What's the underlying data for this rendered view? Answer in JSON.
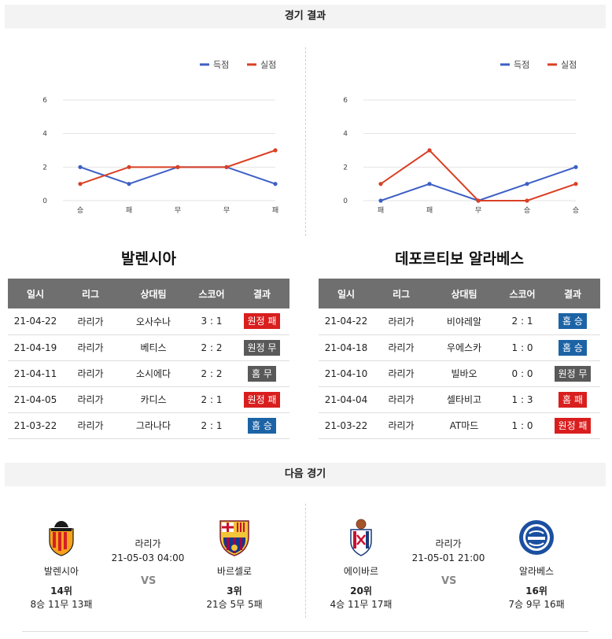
{
  "headers": {
    "results": "경기 결과",
    "next": "다음 경기"
  },
  "legend": {
    "scored": "득점",
    "conceded": "실점"
  },
  "colors": {
    "scored": "#3d5fc4",
    "conceded": "#d94024",
    "grid": "#e3e3e3",
    "red": "#d91e1e",
    "gray": "#595959",
    "blue": "#1c63a6"
  },
  "chart_data": [
    {
      "type": "line",
      "categories": [
        "승",
        "패",
        "무",
        "무",
        "패"
      ],
      "yticks": [
        0,
        2,
        4,
        6
      ],
      "ylim": [
        0,
        6
      ],
      "grid": true,
      "legend_position": "top-right",
      "series": [
        {
          "name": "득점",
          "values": [
            2,
            1,
            2,
            2,
            1
          ]
        },
        {
          "name": "실점",
          "values": [
            1,
            2,
            2,
            2,
            3
          ]
        }
      ]
    },
    {
      "type": "line",
      "categories": [
        "패",
        "패",
        "무",
        "승",
        "승"
      ],
      "yticks": [
        0,
        2,
        4,
        6
      ],
      "ylim": [
        0,
        6
      ],
      "grid": true,
      "legend_position": "top-right",
      "series": [
        {
          "name": "득점",
          "values": [
            0,
            1,
            0,
            1,
            2
          ]
        },
        {
          "name": "실점",
          "values": [
            1,
            3,
            0,
            0,
            1
          ]
        }
      ]
    }
  ],
  "teams": [
    {
      "name": "발렌시아",
      "columns": [
        "일시",
        "리그",
        "상대팀",
        "스코어",
        "결과"
      ],
      "rows": [
        {
          "date": "21-04-22",
          "league": "라리가",
          "opponent": "오사수나",
          "score": "3 : 1",
          "result": "원정 패",
          "color": "red"
        },
        {
          "date": "21-04-19",
          "league": "라리가",
          "opponent": "베티스",
          "score": "2 : 2",
          "result": "원정 무",
          "color": "gray"
        },
        {
          "date": "21-04-11",
          "league": "라리가",
          "opponent": "소시에다",
          "score": "2 : 2",
          "result": "홈 무",
          "color": "gray"
        },
        {
          "date": "21-04-05",
          "league": "라리가",
          "opponent": "카디스",
          "score": "2 : 1",
          "result": "원정 패",
          "color": "red"
        },
        {
          "date": "21-03-22",
          "league": "라리가",
          "opponent": "그라나다",
          "score": "2 : 1",
          "result": "홈 승",
          "color": "blue"
        }
      ]
    },
    {
      "name": "데포르티보 알라베스",
      "columns": [
        "일시",
        "리그",
        "상대팀",
        "스코어",
        "결과"
      ],
      "rows": [
        {
          "date": "21-04-22",
          "league": "라리가",
          "opponent": "비야레알",
          "score": "2 : 1",
          "result": "홈 승",
          "color": "blue"
        },
        {
          "date": "21-04-18",
          "league": "라리가",
          "opponent": "우에스카",
          "score": "1 : 0",
          "result": "홈 승",
          "color": "blue"
        },
        {
          "date": "21-04-10",
          "league": "라리가",
          "opponent": "빌바오",
          "score": "0 : 0",
          "result": "원정 무",
          "color": "gray"
        },
        {
          "date": "21-04-04",
          "league": "라리가",
          "opponent": "셀타비고",
          "score": "1 : 3",
          "result": "홈 패",
          "color": "red"
        },
        {
          "date": "21-03-22",
          "league": "라리가",
          "opponent": "AT마드",
          "score": "1 : 0",
          "result": "원정 패",
          "color": "red"
        }
      ]
    }
  ],
  "next_matches": [
    {
      "home": {
        "name": "발렌시아",
        "rank": "14위",
        "record": "8승 11무 13패"
      },
      "away": {
        "name": "바르셀로",
        "rank": "3위",
        "record": "21승 5무 5패"
      },
      "league": "라리가",
      "datetime": "21-05-03 04:00",
      "vs": "VS"
    },
    {
      "home": {
        "name": "에이바르",
        "rank": "20위",
        "record": "4승 11무 17패"
      },
      "away": {
        "name": "알라베스",
        "rank": "16위",
        "record": "7승 9무 16패"
      },
      "league": "라리가",
      "datetime": "21-05-01 21:00",
      "vs": "VS"
    }
  ]
}
